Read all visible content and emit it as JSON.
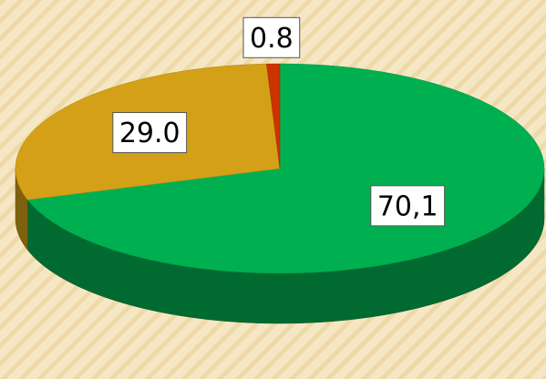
{
  "chart_data": {
    "type": "pie",
    "values": [
      70.1,
      29.0,
      0.8
    ],
    "value_labels": [
      "70,1",
      "29.0",
      "0.8"
    ],
    "colors": [
      "#00b050",
      "#d4a017",
      "#cc3300"
    ]
  }
}
